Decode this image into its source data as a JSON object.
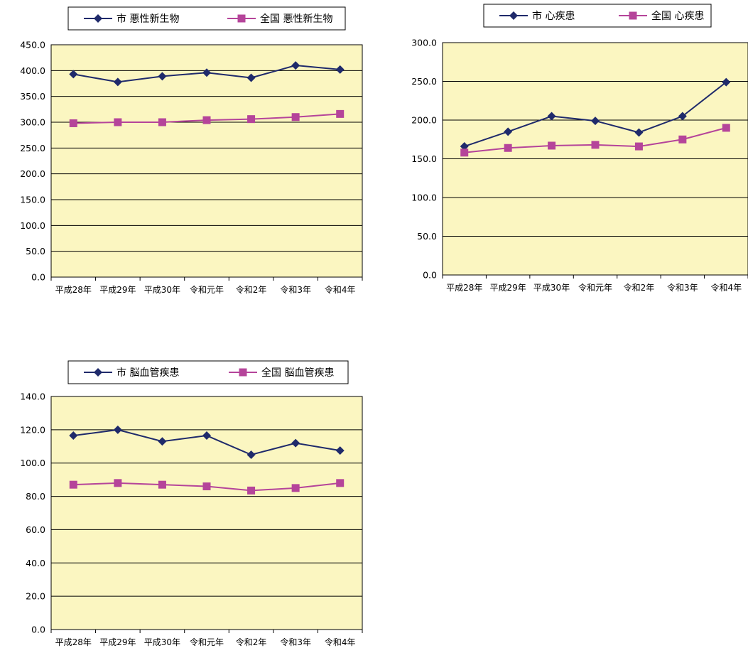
{
  "colors": {
    "plot_bg": "#fbf6c1",
    "gridline": "#000000",
    "city_series": "#1f2a6b",
    "national_series": "#b5449a"
  },
  "chart_data": [
    {
      "type": "line",
      "categories": [
        "平成28年",
        "平成29年",
        "平成30年",
        "令和元年",
        "令和2年",
        "令和3年",
        "令和4年"
      ],
      "series": [
        {
          "name": "市  悪性新生物",
          "marker": "diamond",
          "values": [
            393.0,
            378.0,
            389.0,
            396.0,
            386.0,
            410.0,
            402.0
          ]
        },
        {
          "name": "全国  悪性新生物",
          "marker": "square",
          "values": [
            298.0,
            300.0,
            300.0,
            304.0,
            306.0,
            310.0,
            316.0
          ]
        }
      ],
      "ylim": [
        0,
        450
      ],
      "yticks": [
        0,
        50,
        100,
        150,
        200,
        250,
        300,
        350,
        400,
        450
      ],
      "ytick_labels": [
        "0.0",
        "50.0",
        "100.0",
        "150.0",
        "200.0",
        "250.0",
        "300.0",
        "350.0",
        "400.0",
        "450.0"
      ],
      "grid": true,
      "legend_placement": "top"
    },
    {
      "type": "line",
      "categories": [
        "平成28年",
        "平成29年",
        "平成30年",
        "令和元年",
        "令和2年",
        "令和3年",
        "令和4年"
      ],
      "series": [
        {
          "name": "市  心疾患",
          "marker": "diamond",
          "values": [
            166.0,
            185.0,
            205.0,
            199.0,
            184.0,
            205.0,
            249.0
          ]
        },
        {
          "name": "全国  心疾患",
          "marker": "square",
          "values": [
            158.0,
            164.0,
            167.0,
            168.0,
            166.0,
            175.0,
            190.0
          ]
        }
      ],
      "ylim": [
        0,
        300
      ],
      "yticks": [
        0,
        50,
        100,
        150,
        200,
        250,
        300
      ],
      "ytick_labels": [
        "0.0",
        "50.0",
        "100.0",
        "150.0",
        "200.0",
        "250.0",
        "300.0"
      ],
      "grid": true,
      "legend_placement": "top"
    },
    {
      "type": "line",
      "categories": [
        "平成28年",
        "平成29年",
        "平成30年",
        "令和元年",
        "令和2年",
        "令和3年",
        "令和4年"
      ],
      "series": [
        {
          "name": "市  脳血管疾患",
          "marker": "diamond",
          "values": [
            116.5,
            120.0,
            113.0,
            116.5,
            105.0,
            112.0,
            107.5
          ]
        },
        {
          "name": "全国  脳血管疾患",
          "marker": "square",
          "values": [
            87.0,
            88.0,
            87.0,
            86.0,
            83.5,
            85.0,
            88.0
          ]
        }
      ],
      "ylim": [
        0,
        140
      ],
      "yticks": [
        0,
        20,
        40,
        60,
        80,
        100,
        120,
        140
      ],
      "ytick_labels": [
        "0.0",
        "20.0",
        "40.0",
        "60.0",
        "80.0",
        "100.0",
        "120.0",
        "140.0"
      ],
      "grid": true,
      "legend_placement": "top"
    }
  ]
}
